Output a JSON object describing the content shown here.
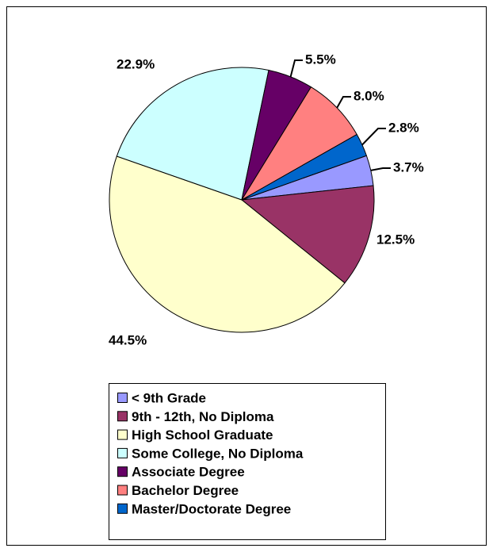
{
  "chart_data": {
    "type": "pie",
    "categories": [
      "< 9th Grade",
      "9th - 12th, No Diploma",
      "High School Graduate",
      "Some College, No Diploma",
      "Associate Degree",
      "Bachelor Degree",
      "Master/Doctorate Degree"
    ],
    "values": [
      3.7,
      12.5,
      44.5,
      22.9,
      5.5,
      8.0,
      2.8
    ],
    "value_labels": [
      "3.7%",
      "12.5%",
      "44.5%",
      "22.9%",
      "5.5%",
      "8.0%",
      "2.8%"
    ],
    "colors": [
      "#9999ff",
      "#993366",
      "#ffffcc",
      "#ccffff",
      "#660066",
      "#ff8080",
      "#0066cc"
    ],
    "legend": "bottom"
  }
}
